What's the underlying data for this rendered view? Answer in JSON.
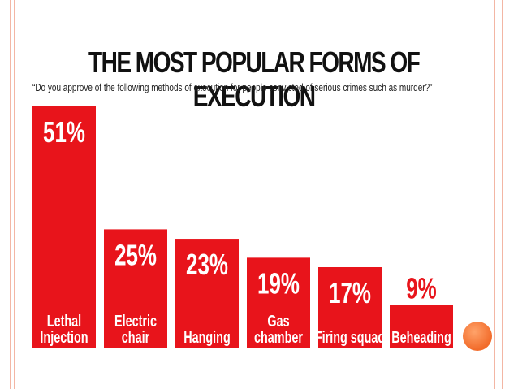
{
  "chart_data": {
    "type": "bar",
    "title": "THE MOST POPULAR FORMS OF EXECUTION",
    "subtitle": "“Do you approve of the following methods of execution for people convicted of serious crimes such as murder?”",
    "categories": [
      "Lethal\nInjection",
      "Electric\nchair",
      "Hanging",
      "Gas\nchamber",
      "Firing squad",
      "Beheading"
    ],
    "values": [
      51,
      25,
      23,
      19,
      17,
      9
    ],
    "value_labels": [
      "51%",
      "25%",
      "23%",
      "19%",
      "17%",
      "9%"
    ],
    "xlabel": "",
    "ylabel": "",
    "ylim": [
      0,
      51
    ],
    "grid": false,
    "legend": "none",
    "colors": {
      "bar": "#e8141b",
      "value_inside": "#ffffff",
      "value_outside": "#e8141b",
      "category_text": "#ffffff",
      "title": "#111111"
    }
  }
}
